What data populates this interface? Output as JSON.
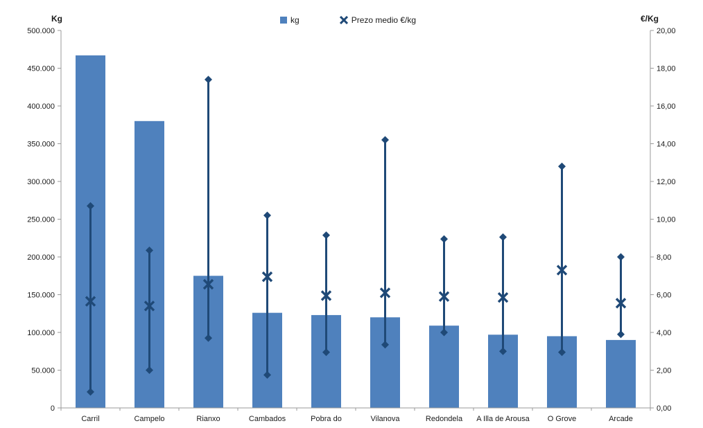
{
  "chart_data": {
    "type": "combo",
    "categories": [
      "Carril",
      "Campelo",
      "Rianxo",
      "Cambados",
      "Pobra do",
      "Vilanova",
      "Redondela",
      "A Illa de Arousa",
      "O Grove",
      "Arcade"
    ],
    "series": [
      {
        "name": "kg",
        "type": "bar",
        "axis": "left",
        "values": [
          467000,
          380000,
          175000,
          126000,
          123000,
          120000,
          109000,
          97000,
          95000,
          90000
        ]
      },
      {
        "name": "Prezo medio €/kg",
        "type": "scatter",
        "marker": "x",
        "axis": "right",
        "values": [
          5.65,
          5.4,
          6.55,
          6.95,
          5.95,
          6.1,
          5.9,
          5.85,
          7.3,
          5.55
        ]
      },
      {
        "name": "price-range-high-low",
        "type": "hilo",
        "marker": "diamond",
        "axis": "right",
        "high": [
          10.7,
          8.35,
          17.4,
          10.2,
          9.15,
          14.2,
          8.95,
          9.05,
          12.8,
          8.0
        ],
        "low": [
          0.85,
          2.0,
          3.7,
          1.75,
          2.95,
          3.35,
          4.0,
          3.0,
          2.95,
          3.9
        ]
      }
    ],
    "left_axis": {
      "title": "Kg",
      "min": 0,
      "max": 500000,
      "step": 50000,
      "tick_labels": [
        "0",
        "50.000",
        "100.000",
        "150.000",
        "200.000",
        "250.000",
        "300.000",
        "350.000",
        "400.000",
        "450.000",
        "500.000"
      ]
    },
    "right_axis": {
      "title": "€/Kg",
      "min": 0,
      "max": 20,
      "step": 2,
      "tick_labels": [
        "0,00",
        "2,00",
        "4,00",
        "6,00",
        "8,00",
        "10,00",
        "12,00",
        "14,00",
        "16,00",
        "18,00",
        "20,00"
      ]
    },
    "grid": false,
    "legend_position": "top-center",
    "colors": {
      "bar": "#4F81BD",
      "marker": "#1F4977",
      "axis": "#9A9A9A",
      "text": "#1a1a1a"
    }
  },
  "legend": {
    "items": [
      {
        "label": "kg",
        "marker": "square"
      },
      {
        "label": "Prezo medio €/kg",
        "marker": "x"
      }
    ]
  }
}
